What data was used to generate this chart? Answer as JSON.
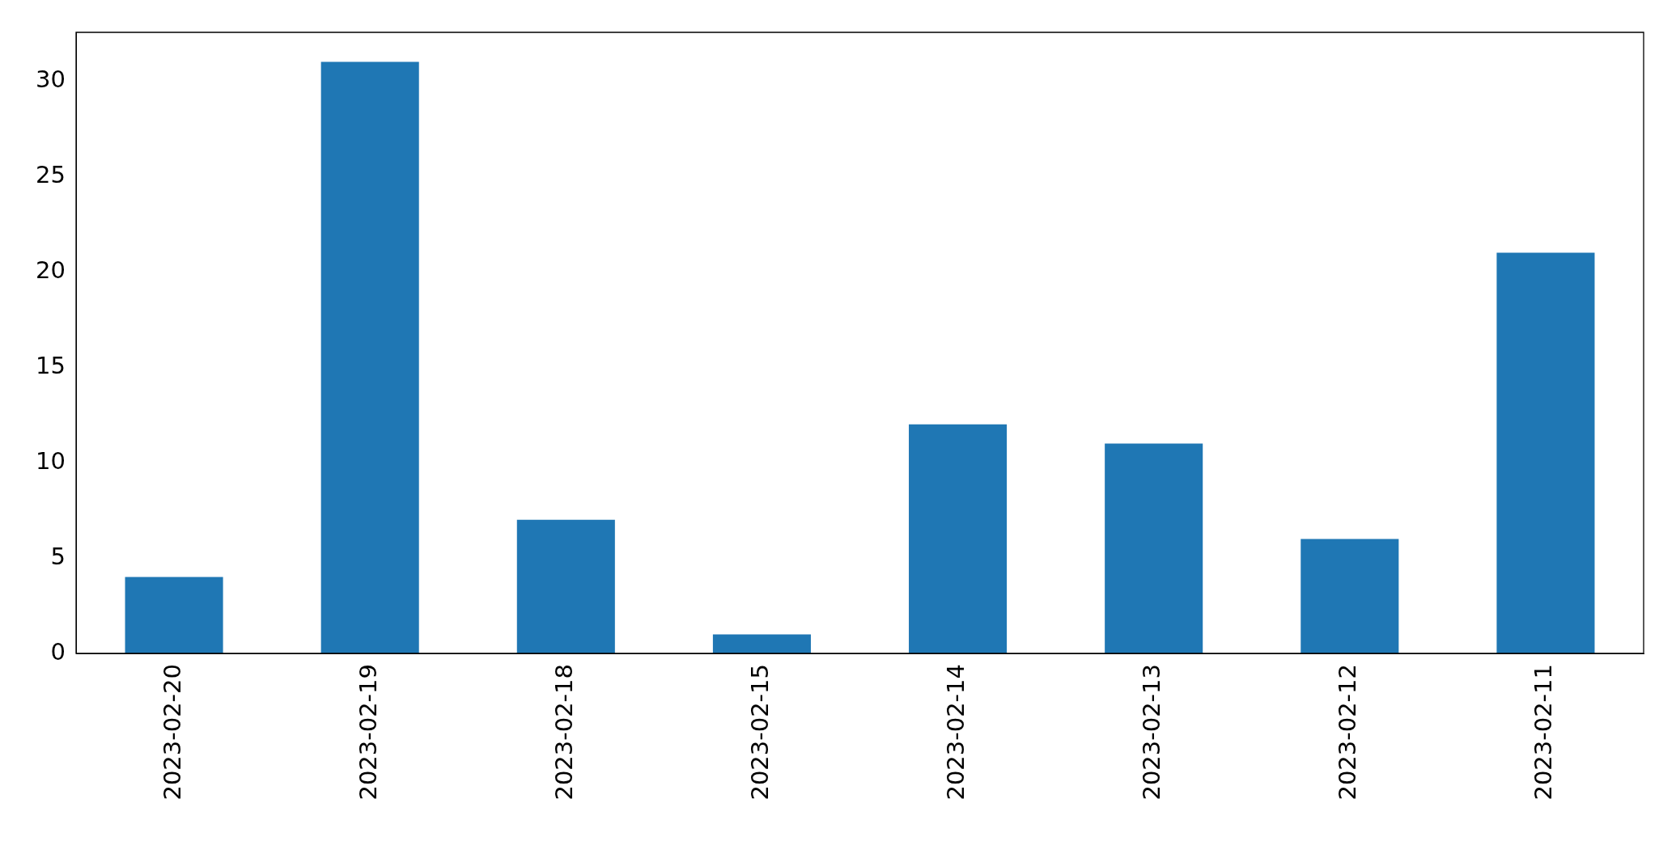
{
  "chart_data": {
    "type": "bar",
    "categories": [
      "2023-02-20",
      "2023-02-19",
      "2023-02-18",
      "2023-02-15",
      "2023-02-14",
      "2023-02-13",
      "2023-02-12",
      "2023-02-11"
    ],
    "values": [
      4,
      31,
      7,
      1,
      12,
      11,
      6,
      21
    ],
    "color": "#1f77b4",
    "ylim": [
      0,
      32.55
    ],
    "yticks": [
      0,
      5,
      10,
      15,
      20,
      25,
      30
    ],
    "grid": false,
    "legend": false
  }
}
